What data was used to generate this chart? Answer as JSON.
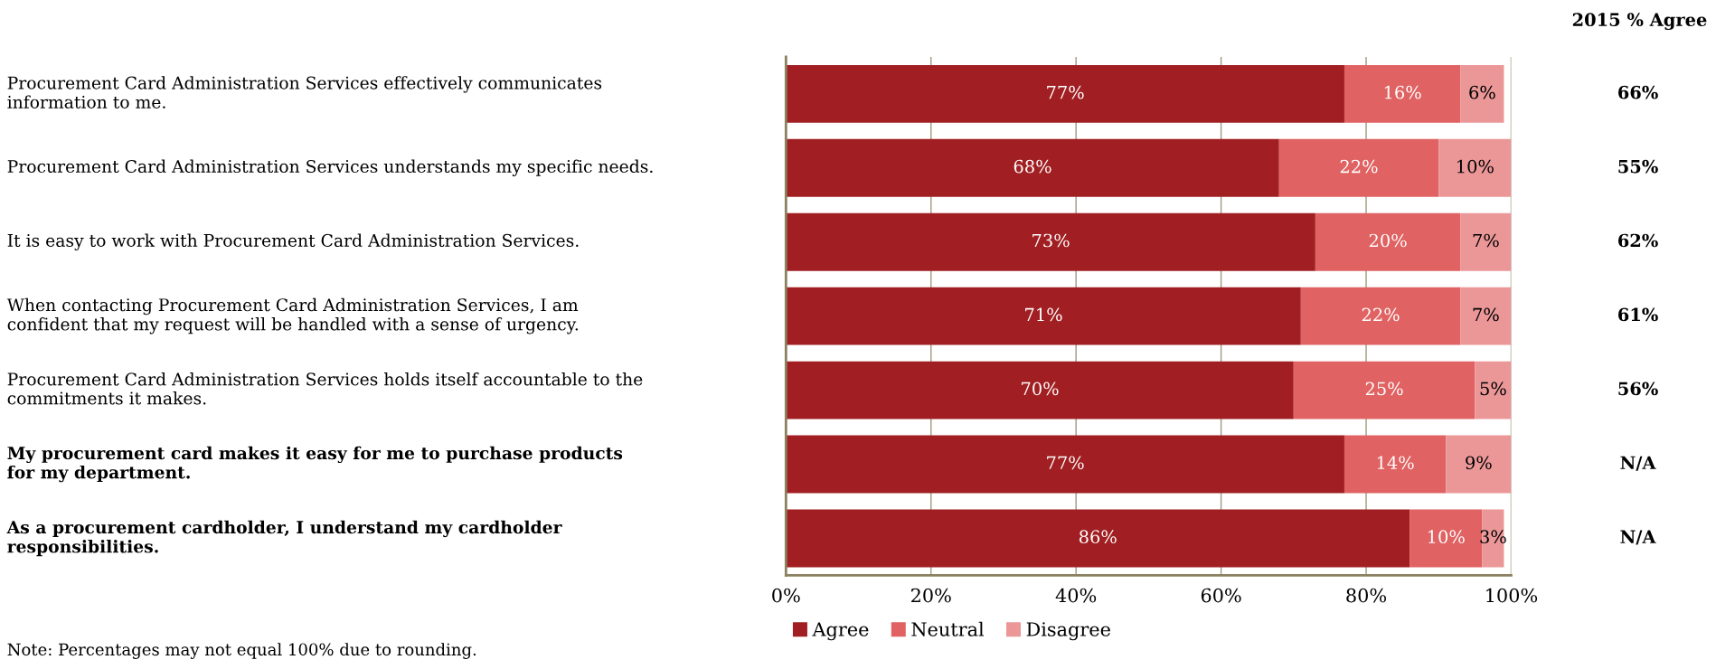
{
  "chart_data": {
    "type": "bar",
    "orientation": "horizontal",
    "stacked": true,
    "categories": [
      "Procurement Card Administration Services effectively communicates\ninformation to me.",
      "Procurement Card Administration Services understands my specific needs.",
      "It is easy to work with Procurement Card Administration Services.",
      "When contacting Procurement Card Administration Services, I am\nconfident that my request will be handled with a sense of urgency.",
      "Procurement Card Administration Services holds itself accountable to the\ncommitments it makes.",
      "My procurement card makes it easy for me to purchase products\nfor my department.",
      "As a procurement cardholder, I understand my cardholder\nresponsibilities."
    ],
    "series": [
      {
        "name": "Agree",
        "color": "#a11f22",
        "values": [
          77,
          68,
          73,
          71,
          70,
          77,
          86
        ]
      },
      {
        "name": "Neutral",
        "color": "#e06262",
        "values": [
          16,
          22,
          20,
          22,
          25,
          14,
          10
        ]
      },
      {
        "name": "Disagree",
        "color": "#eb9798",
        "values": [
          6,
          10,
          7,
          7,
          5,
          9,
          3
        ]
      }
    ],
    "value_labels": [
      [
        "77%",
        "68%",
        "73%",
        "71%",
        "70%",
        "77%",
        "86%"
      ],
      [
        "16%",
        "22%",
        "20%",
        "22%",
        "25%",
        "14%",
        "10%"
      ],
      [
        "6%",
        "10%",
        "7%",
        "7%",
        "5%",
        "9%",
        "3%"
      ]
    ],
    "xlim": [
      0,
      100
    ],
    "xticks": [
      {
        "value": 0,
        "label": "0%"
      },
      {
        "value": 20,
        "label": "20%"
      },
      {
        "value": 40,
        "label": "40%"
      },
      {
        "value": 60,
        "label": "60%"
      },
      {
        "value": 80,
        "label": "80%"
      },
      {
        "value": 100,
        "label": "100%"
      }
    ],
    "grid": "x",
    "legend": "bottom",
    "annotations": [
      "2015 % Agree",
      "66%",
      "55%",
      "62%",
      "61%",
      "56%",
      "N/A",
      "N/A",
      "Note: Percentages may not equal 100% due to rounding."
    ]
  }
}
